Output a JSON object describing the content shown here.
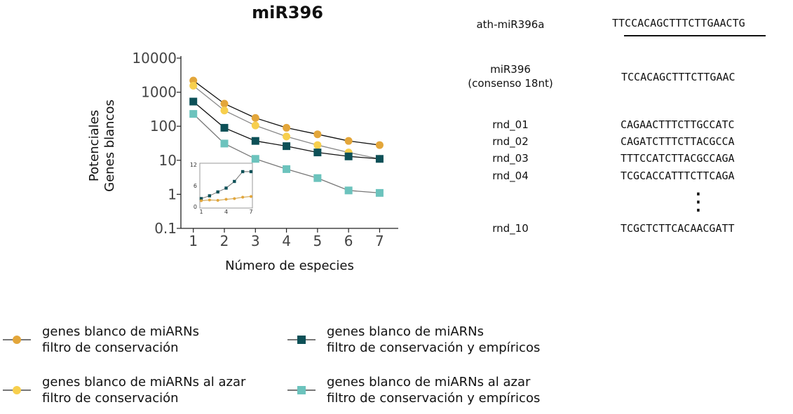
{
  "chart_data": {
    "type": "line",
    "title": "miR396",
    "xlabel": "Número de especies",
    "ylabel": [
      "Potenciales",
      "Genes blancos"
    ],
    "yscale": "log",
    "ylim": [
      0.1,
      10000
    ],
    "xlim": [
      0.6,
      7.6
    ],
    "x": [
      1,
      2,
      3,
      4,
      5,
      6,
      7
    ],
    "yticks": [
      "0.1",
      "1",
      "10",
      "100",
      "1000",
      "10000"
    ],
    "xticks": [
      "1",
      "2",
      "3",
      "4",
      "5",
      "6",
      "7"
    ],
    "series": [
      {
        "name": "genes blanco de miARNs\nfiltro de conservación",
        "color": "#e3a63a",
        "marker": "circle",
        "values": [
          2200,
          460,
          175,
          90,
          58,
          37,
          28
        ]
      },
      {
        "name": "genes blanco de miARNs al azar\nfiltro de conservación",
        "color": "#f7cf4d",
        "marker": "circle",
        "values": [
          1550,
          290,
          105,
          50,
          28,
          17,
          11
        ]
      },
      {
        "name": "genes blanco de miARNs\nfiltro de conservación y empíricos",
        "color": "#0d5057",
        "marker": "square",
        "values": [
          530,
          90,
          37,
          26,
          17,
          13,
          11
        ]
      },
      {
        "name": "genes blanco de miARNs al azar\nfiltro de conservación y empíricos",
        "color": "#6cc3bd",
        "marker": "square",
        "values": [
          230,
          31,
          11,
          5.5,
          3,
          1.3,
          1.1
        ]
      }
    ],
    "inset": {
      "type": "line",
      "ylim": [
        0,
        12
      ],
      "xlim": [
        1,
        7
      ],
      "yticks": [
        "0",
        "6",
        "12"
      ],
      "xticks": [
        "1",
        "4",
        "7"
      ],
      "x": [
        1,
        2,
        3,
        4,
        5,
        6,
        7
      ],
      "series": [
        {
          "color": "#0d5057",
          "marker": "square",
          "values": [
            2.3,
            3.1,
            4.2,
            5.3,
            7.2,
            10,
            10
          ]
        },
        {
          "color": "#e3a63a",
          "marker": "circle",
          "values": [
            1.7,
            1.9,
            1.8,
            2.1,
            2.3,
            2.7,
            2.9
          ]
        }
      ]
    },
    "legend_position": "bottom"
  },
  "sequences": {
    "reference": {
      "label": "ath-miR396a",
      "seq": "TTCCACAGCTTTCTTGAACTG"
    },
    "consensus": {
      "label_line1": "miR396",
      "label_line2": "(consenso 18nt)",
      "seq": "TCCACAGCTTTCTTGAAC"
    },
    "random": [
      {
        "label": "rnd_01",
        "seq": "CAGAACTTTCTTGCCATC"
      },
      {
        "label": "rnd_02",
        "seq": "CAGATCTTTCTTACGCCA"
      },
      {
        "label": "rnd_03",
        "seq": "TTTCCATCTTACGCCAGA"
      },
      {
        "label": "rnd_04",
        "seq": "TCGCACCATTTCTTCAGA"
      }
    ],
    "ellipsis": "⋮",
    "last": {
      "label": "rnd_10",
      "seq": "TCGCTCTTCACAACGATT"
    }
  },
  "legend": [
    {
      "line1": "genes blanco de miARNs",
      "line2": "filtro de conservación",
      "color": "#e3a63a",
      "marker": "circle"
    },
    {
      "line1": "genes blanco de miARNs",
      "line2": "filtro de conservación y empíricos",
      "color": "#0d5057",
      "marker": "square"
    },
    {
      "line1": "genes blanco de miARNs al azar",
      "line2": "filtro de conservación",
      "color": "#f7cf4d",
      "marker": "circle"
    },
    {
      "line1": "genes blanco de miARNs al azar",
      "line2": "filtro de conservación y empíricos",
      "color": "#6cc3bd",
      "marker": "square"
    }
  ]
}
